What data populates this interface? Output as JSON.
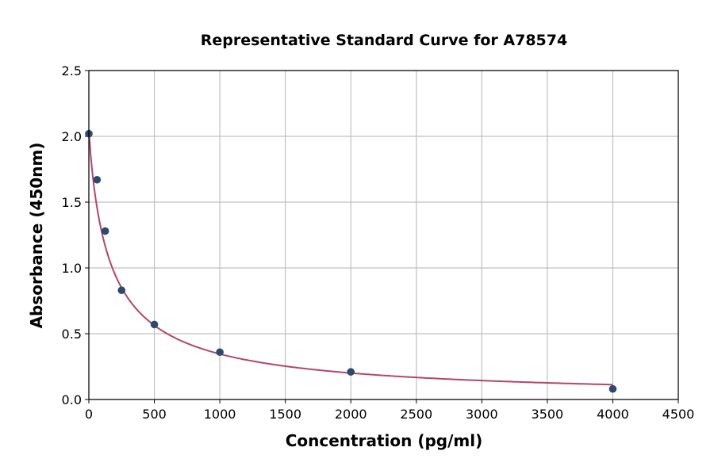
{
  "chart_data": {
    "type": "scatter",
    "title": "Representative Standard Curve for A78574",
    "xlabel": "Concentration (pg/ml)",
    "ylabel": "Absorbance (450nm)",
    "xlim": [
      0,
      4500
    ],
    "ylim": [
      0,
      2.5
    ],
    "xticks": [
      0,
      500,
      1000,
      1500,
      2000,
      2500,
      3000,
      3500,
      4000,
      4500
    ],
    "yticks": [
      0.0,
      0.5,
      1.0,
      1.5,
      2.0,
      2.5
    ],
    "grid": true,
    "series": [
      {
        "x": [
          0,
          62.5,
          125,
          250,
          500,
          1000,
          2000,
          4000
        ],
        "y": [
          2.02,
          1.67,
          1.28,
          0.83,
          0.57,
          0.36,
          0.21,
          0.08
        ]
      }
    ],
    "fit_curve": true,
    "colors": {
      "points": "#2b4a6f",
      "curve": "#b5446a",
      "grid": "#c0c0c0"
    }
  }
}
